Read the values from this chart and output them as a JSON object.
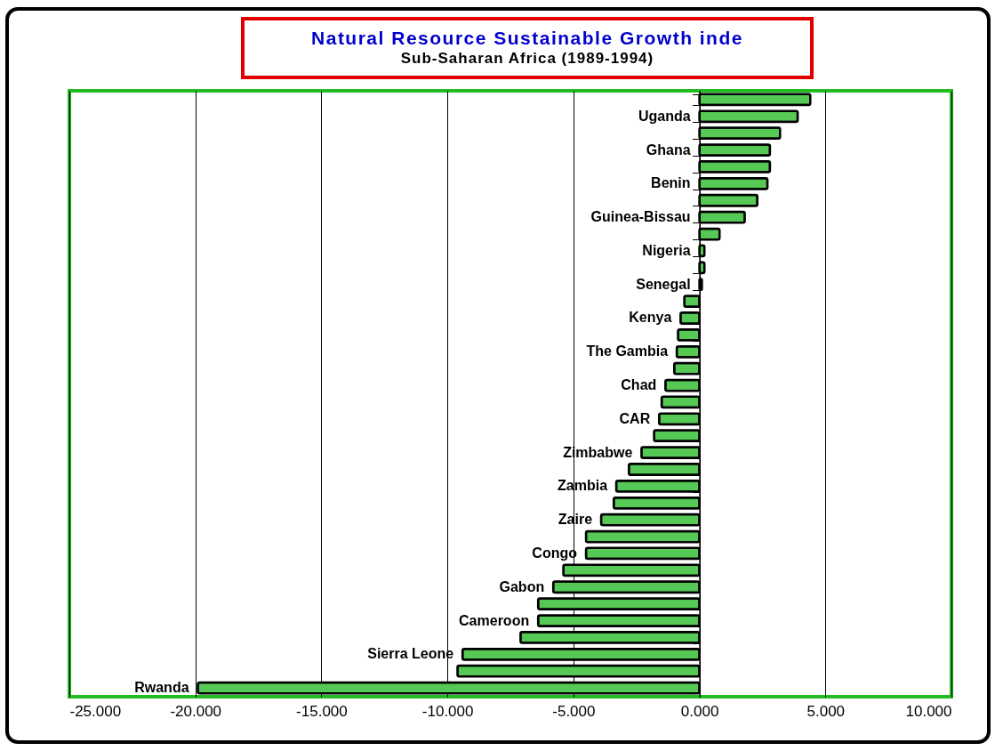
{
  "chart_data": {
    "type": "bar",
    "orientation": "horizontal",
    "title": "Natural Resource Sustainable Growth inde",
    "subtitle": "Sub-Saharan Africa (1989-1994)",
    "categories": [
      null,
      "Uganda",
      null,
      "Ghana",
      null,
      "Benin",
      null,
      "Guinea-Bissau",
      null,
      "Nigeria",
      null,
      "Senegal",
      null,
      "Kenya",
      null,
      "The Gambia",
      null,
      "Chad",
      null,
      "CAR",
      null,
      "Zimbabwe",
      null,
      "Zambia",
      null,
      "Zaire",
      null,
      "Congo",
      null,
      "Gabon",
      null,
      "Cameroon",
      null,
      "Sierra Leone",
      null,
      "Rwanda"
    ],
    "values": [
      4.4,
      3.9,
      3.2,
      2.8,
      2.8,
      2.7,
      2.3,
      1.8,
      0.8,
      0.2,
      0.2,
      0.1,
      -0.6,
      -0.75,
      -0.85,
      -0.9,
      -1.0,
      -1.35,
      -1.5,
      -1.6,
      -1.8,
      -2.3,
      -2.8,
      -3.3,
      -3.4,
      -3.9,
      -4.5,
      -4.5,
      -5.4,
      -5.8,
      -6.4,
      -6.4,
      -7.1,
      -9.4,
      -9.6,
      -19.9
    ],
    "color": "#55c855",
    "xlim": [
      -25,
      10
    ],
    "xticks": [
      {
        "value": -25,
        "label": "-25.000"
      },
      {
        "value": -20,
        "label": "-20.000"
      },
      {
        "value": -15,
        "label": "-15.000"
      },
      {
        "value": -10,
        "label": "-10.000"
      },
      {
        "value": -5,
        "label": "-5.000"
      },
      {
        "value": 0,
        "label": "0.000"
      },
      {
        "value": 5,
        "label": "5.000"
      },
      {
        "value": 10,
        "label": "10.000"
      }
    ],
    "grid": "x"
  }
}
